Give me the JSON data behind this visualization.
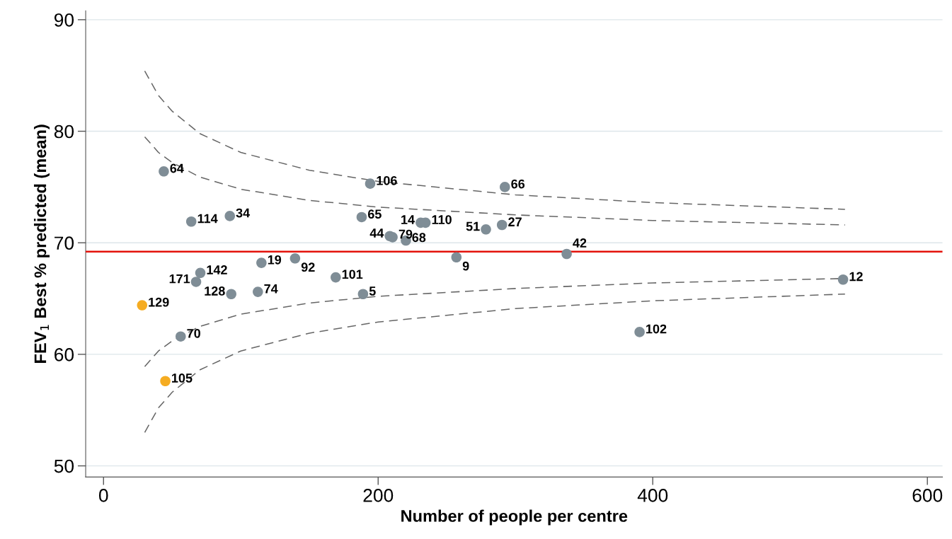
{
  "chart_data": {
    "type": "scatter",
    "xlabel": "Number of people per centre",
    "ylabel": "FEV$_{1}$ Best % predicted (mean)",
    "xlim": [
      -13,
      611
    ],
    "ylim": [
      49,
      90.8
    ],
    "xticks": [
      0,
      200,
      400,
      600
    ],
    "yticks": [
      50,
      60,
      70,
      80,
      90
    ],
    "grid": "y",
    "marker": "circle",
    "series": [
      {
        "color": "#7f8d96",
        "x": [
          43.9,
          63.9,
          92,
          194.2,
          292.3,
          188,
          231,
          234.5,
          278.5,
          290.2,
          208.5,
          210.5,
          220.2,
          337.3,
          257,
          115,
          139.5,
          169.1,
          70.5,
          67.4,
          93,
          112.4,
          189,
          538.6,
          56.2,
          390.4
        ],
        "values": [
          76.4,
          71.9,
          72.4,
          75.3,
          75.0,
          72.3,
          71.8,
          71.8,
          71.2,
          71.6,
          70.6,
          70.5,
          70.2,
          69.0,
          68.7,
          68.2,
          68.6,
          66.9,
          67.3,
          66.5,
          65.4,
          65.6,
          65.4,
          66.7,
          61.6,
          62.0
        ]
      },
      {
        "color": "#f5ac22",
        "x": [
          28.1,
          45
        ],
        "values": [
          64.4,
          57.6
        ]
      },
      {
        "type": "line",
        "color": "#666666",
        "line_style": "dashed",
        "marker": "none",
        "x": [
          30,
          40,
          50,
          70,
          100,
          150,
          200,
          300,
          400,
          540
        ],
        "values": [
          85.4,
          83.2,
          81.8,
          79.8,
          78.1,
          76.5,
          75.5,
          74.3,
          73.6,
          73.0
        ]
      },
      {
        "type": "line",
        "color": "#666666",
        "line_style": "dashed",
        "marker": "none",
        "x": [
          30,
          40,
          50,
          70,
          100,
          150,
          200,
          300,
          400,
          540
        ],
        "values": [
          79.5,
          78.1,
          77.2,
          75.9,
          74.8,
          73.8,
          73.2,
          72.5,
          72.0,
          71.6
        ]
      },
      {
        "type": "line",
        "color": "#666666",
        "line_style": "dashed",
        "marker": "none",
        "x": [
          30,
          40,
          50,
          70,
          100,
          150,
          200,
          300,
          400,
          540
        ],
        "values": [
          58.9,
          60.3,
          61.2,
          62.5,
          63.6,
          64.6,
          65.2,
          65.9,
          66.4,
          66.8
        ]
      },
      {
        "type": "line",
        "color": "#666666",
        "line_style": "dashed",
        "marker": "none",
        "x": [
          30,
          40,
          50,
          70,
          100,
          150,
          200,
          300,
          400,
          540
        ],
        "values": [
          53.0,
          55.2,
          56.6,
          58.6,
          60.3,
          61.9,
          62.9,
          64.1,
          64.8,
          65.4
        ]
      }
    ],
    "ref_lines": [
      {
        "axis": "y",
        "value": 69.2,
        "color": "#e3120b",
        "line_style": "solid"
      }
    ],
    "annotations": [
      {
        "text": "64",
        "x": 43.9,
        "y": 76.4
      },
      {
        "text": "114",
        "x": 63.9,
        "y": 71.9
      },
      {
        "text": "34",
        "x": 92,
        "y": 72.4
      },
      {
        "text": "106",
        "x": 194.2,
        "y": 75.3
      },
      {
        "text": "66",
        "x": 292.3,
        "y": 75.0
      },
      {
        "text": "65",
        "x": 188,
        "y": 72.3
      },
      {
        "text": "14",
        "x": 231,
        "y": 71.8
      },
      {
        "text": "110",
        "x": 234.5,
        "y": 71.8
      },
      {
        "text": "51",
        "x": 278.5,
        "y": 71.2
      },
      {
        "text": "27",
        "x": 290.2,
        "y": 71.6
      },
      {
        "text": "44",
        "x": 208.5,
        "y": 70.6
      },
      {
        "text": "79",
        "x": 210.5,
        "y": 70.5
      },
      {
        "text": "68",
        "x": 220.2,
        "y": 70.2
      },
      {
        "text": "42",
        "x": 337.3,
        "y": 69.0
      },
      {
        "text": "9",
        "x": 257,
        "y": 68.7
      },
      {
        "text": "19",
        "x": 115,
        "y": 68.2
      },
      {
        "text": "92",
        "x": 139.5,
        "y": 68.6
      },
      {
        "text": "101",
        "x": 169.1,
        "y": 66.9
      },
      {
        "text": "142",
        "x": 70.5,
        "y": 67.3
      },
      {
        "text": "171",
        "x": 67.4,
        "y": 66.5
      },
      {
        "text": "128",
        "x": 93,
        "y": 65.4
      },
      {
        "text": "74",
        "x": 112.4,
        "y": 65.6
      },
      {
        "text": "5",
        "x": 189,
        "y": 65.4
      },
      {
        "text": "12",
        "x": 538.6,
        "y": 66.7
      },
      {
        "text": "70",
        "x": 56.2,
        "y": 61.6
      },
      {
        "text": "102",
        "x": 390.4,
        "y": 62.0
      },
      {
        "text": "129",
        "x": 28.1,
        "y": 64.4
      },
      {
        "text": "105",
        "x": 45,
        "y": 57.6
      }
    ]
  }
}
